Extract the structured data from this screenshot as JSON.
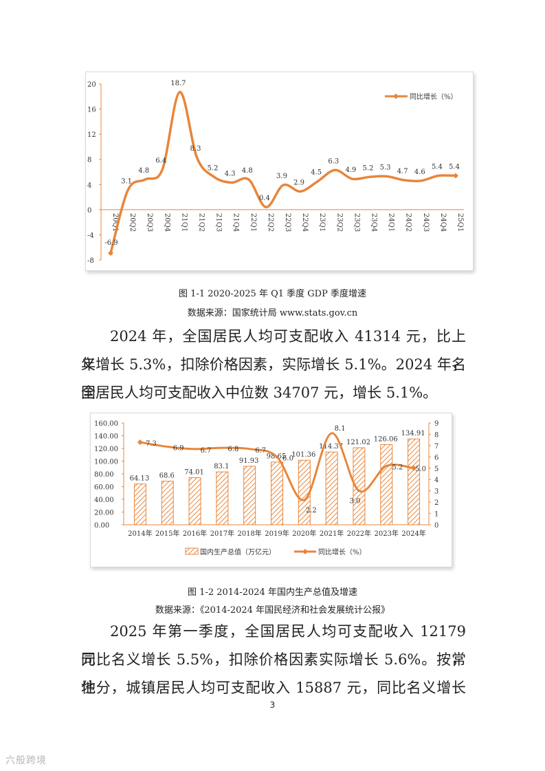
{
  "chart_data": [
    {
      "type": "line",
      "title": "",
      "categories": [
        "20Q1",
        "20Q2",
        "20Q3",
        "20Q4",
        "21Q1",
        "21Q2",
        "21Q3",
        "21Q4",
        "22Q1",
        "22Q2",
        "22Q3",
        "22Q4",
        "23Q1",
        "23Q2",
        "23Q3",
        "23Q4",
        "24Q1",
        "24Q2",
        "24Q3",
        "24Q4",
        "25Q1"
      ],
      "series": [
        {
          "name": "同比增长（%）",
          "values": [
            -6.9,
            3.1,
            4.8,
            6.4,
            18.7,
            8.3,
            5.2,
            4.3,
            4.8,
            0.4,
            3.9,
            2.9,
            4.5,
            6.3,
            4.9,
            5.2,
            5.3,
            4.7,
            4.6,
            5.4,
            5.4
          ]
        }
      ],
      "y_ticks": [
        20,
        16,
        12,
        8,
        4,
        0,
        -4,
        -8
      ],
      "ylim": [
        -8,
        20
      ],
      "legend_position": "top-right",
      "grid": false,
      "color": "#E8853A"
    },
    {
      "type": "bar",
      "categories": [
        "2014年",
        "2015年",
        "2016年",
        "2017年",
        "2018年",
        "2019年",
        "2020年",
        "2021年",
        "2022年",
        "2023年",
        "2024年"
      ],
      "series": [
        {
          "name": "国内生产总值（万亿元）",
          "type": "bar",
          "axis": "left",
          "values": [
            64.13,
            68.6,
            74.01,
            83.1,
            91.93,
            98.65,
            101.36,
            114.37,
            121.02,
            126.06,
            134.91
          ]
        },
        {
          "name": "同比增长（%）",
          "type": "line",
          "axis": "right",
          "values": [
            7.3,
            6.9,
            6.7,
            6.8,
            6.7,
            6.0,
            2.2,
            8.1,
            3.0,
            5.2,
            5.0
          ]
        }
      ],
      "y_left_ticks": [
        "160.00",
        "140.00",
        "120.00",
        "100.00",
        "80.00",
        "60.00",
        "40.00",
        "20.00",
        "0.00"
      ],
      "y_right_ticks": [
        "9",
        "8",
        "7",
        "6",
        "5",
        "4",
        "3",
        "2",
        "1",
        "0"
      ],
      "ylim_left": [
        0,
        160
      ],
      "ylim_right": [
        0,
        9
      ],
      "legend_position": "bottom",
      "grid": false,
      "color": "#E8853A"
    }
  ],
  "captions": {
    "fig1": "图 1-1 2020-2025 年 Q1 季度 GDP 季度增速",
    "fig1_source": "数据来源：国家统计局 www.stats.gov.cn",
    "fig2": "图 1-2 2014-2024 年国内生产总值及增速",
    "fig2_source": "数据来源：《2014-2024 年国民经济和社会发展统计公报》"
  },
  "paragraphs": {
    "p1": [
      "2024 年，全国居民人均可支配收入 41314 元，比上年名",
      "义增长 5.3%，扣除价格因素，实际增长 5.1%。2024 年，全",
      "国居民人均可支配收入中位数 34707 元，增长 5.1%。"
    ],
    "p2": [
      "2025 年第一季度，全国居民人均可支配收入 12179 元，",
      "同比名义增长 5.5%，扣除价格因素实际增长 5.6%。按常住",
      "地分，城镇居民人均可支配收入 15887 元，同比名义增长"
    ]
  },
  "page_number": "3",
  "watermark": "六般跨境"
}
